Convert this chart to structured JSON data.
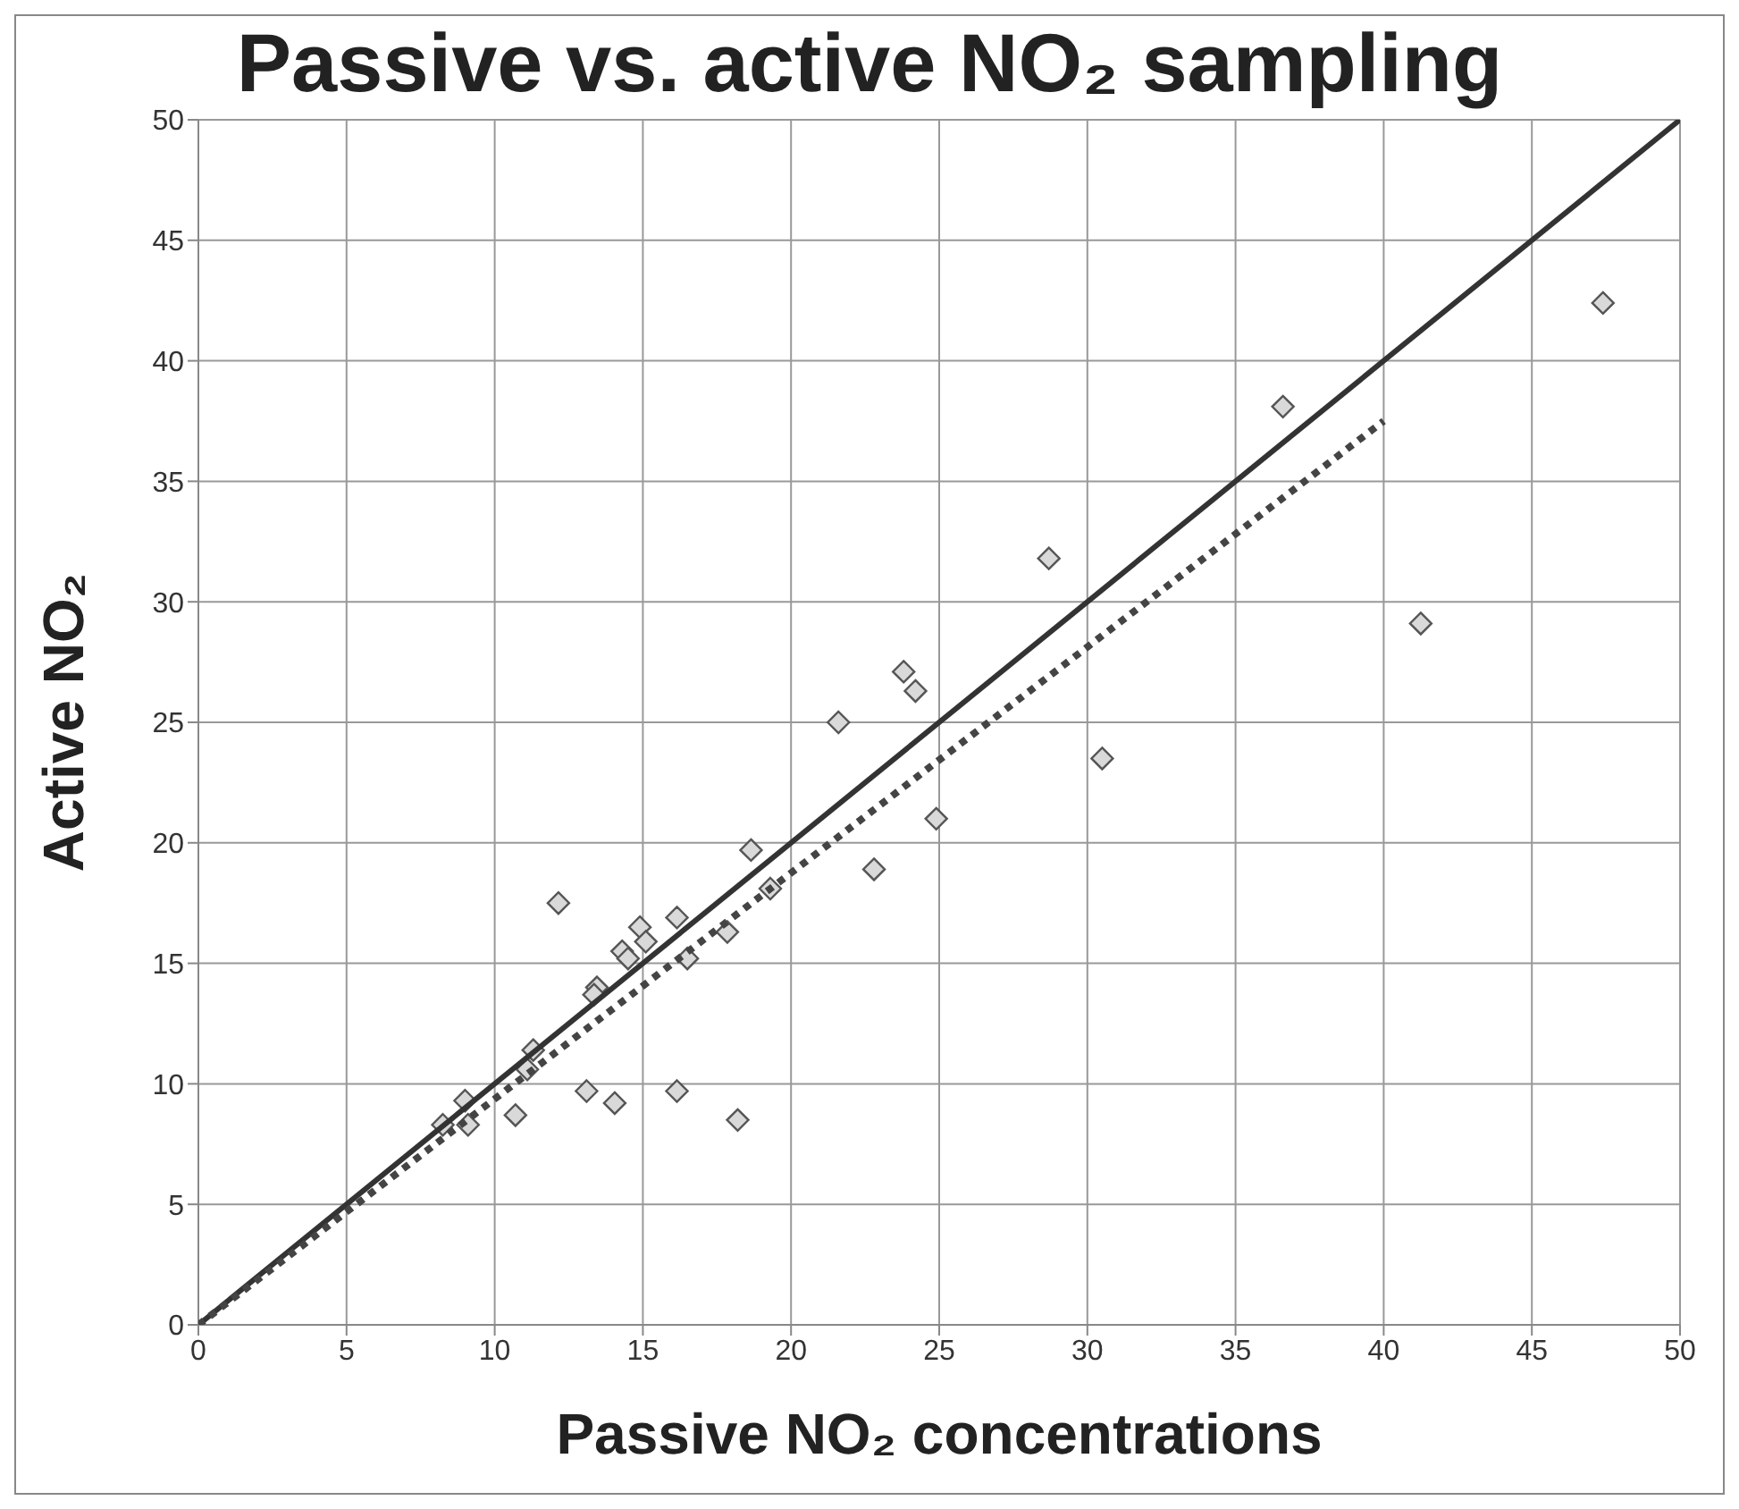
{
  "chart_data": {
    "type": "scatter",
    "title": "Passive vs. active NO₂ sampling",
    "xlabel": "Passive NO₂ concentrations",
    "ylabel": "Active NO₂",
    "xlim": [
      0,
      50
    ],
    "ylim": [
      0,
      50
    ],
    "xticks": [
      0,
      5,
      10,
      15,
      20,
      25,
      30,
      35,
      40,
      45,
      50
    ],
    "yticks": [
      0,
      5,
      10,
      15,
      20,
      25,
      30,
      35,
      40,
      45,
      50
    ],
    "grid": true,
    "legend": false,
    "series": [
      {
        "marker": "diamond",
        "color": "#d9d9d9",
        "x": [
          12.15,
          14.9,
          16.15,
          14.3,
          14.5,
          15.1,
          16.5,
          17.85,
          19.3,
          18.65,
          13.45,
          13.35,
          11.3,
          11.1,
          9.0,
          8.25,
          9.1,
          10.7,
          13.1,
          14.05,
          16.15,
          18.2,
          28.7,
          23.8,
          24.2,
          21.6,
          30.5,
          24.9,
          22.8,
          47.4,
          36.6,
          41.25
        ],
        "values": [
          17.5,
          16.5,
          16.9,
          15.5,
          15.2,
          15.9,
          15.2,
          16.3,
          18.1,
          19.7,
          14.0,
          13.7,
          11.4,
          10.6,
          9.3,
          8.3,
          8.3,
          8.7,
          9.7,
          9.2,
          9.7,
          8.5,
          31.8,
          27.1,
          26.3,
          25.0,
          23.5,
          21.0,
          18.9,
          42.4,
          38.1,
          29.1
        ]
      },
      {
        "type": "line",
        "marker": "none",
        "line_style": "solid",
        "color": "#333333",
        "x": [
          0,
          50
        ],
        "values": [
          0,
          50
        ]
      },
      {
        "type": "line",
        "marker": "none",
        "line_style": "dotted",
        "color": "#444444",
        "x": [
          0,
          40
        ],
        "values": [
          0,
          37.5
        ]
      }
    ]
  }
}
